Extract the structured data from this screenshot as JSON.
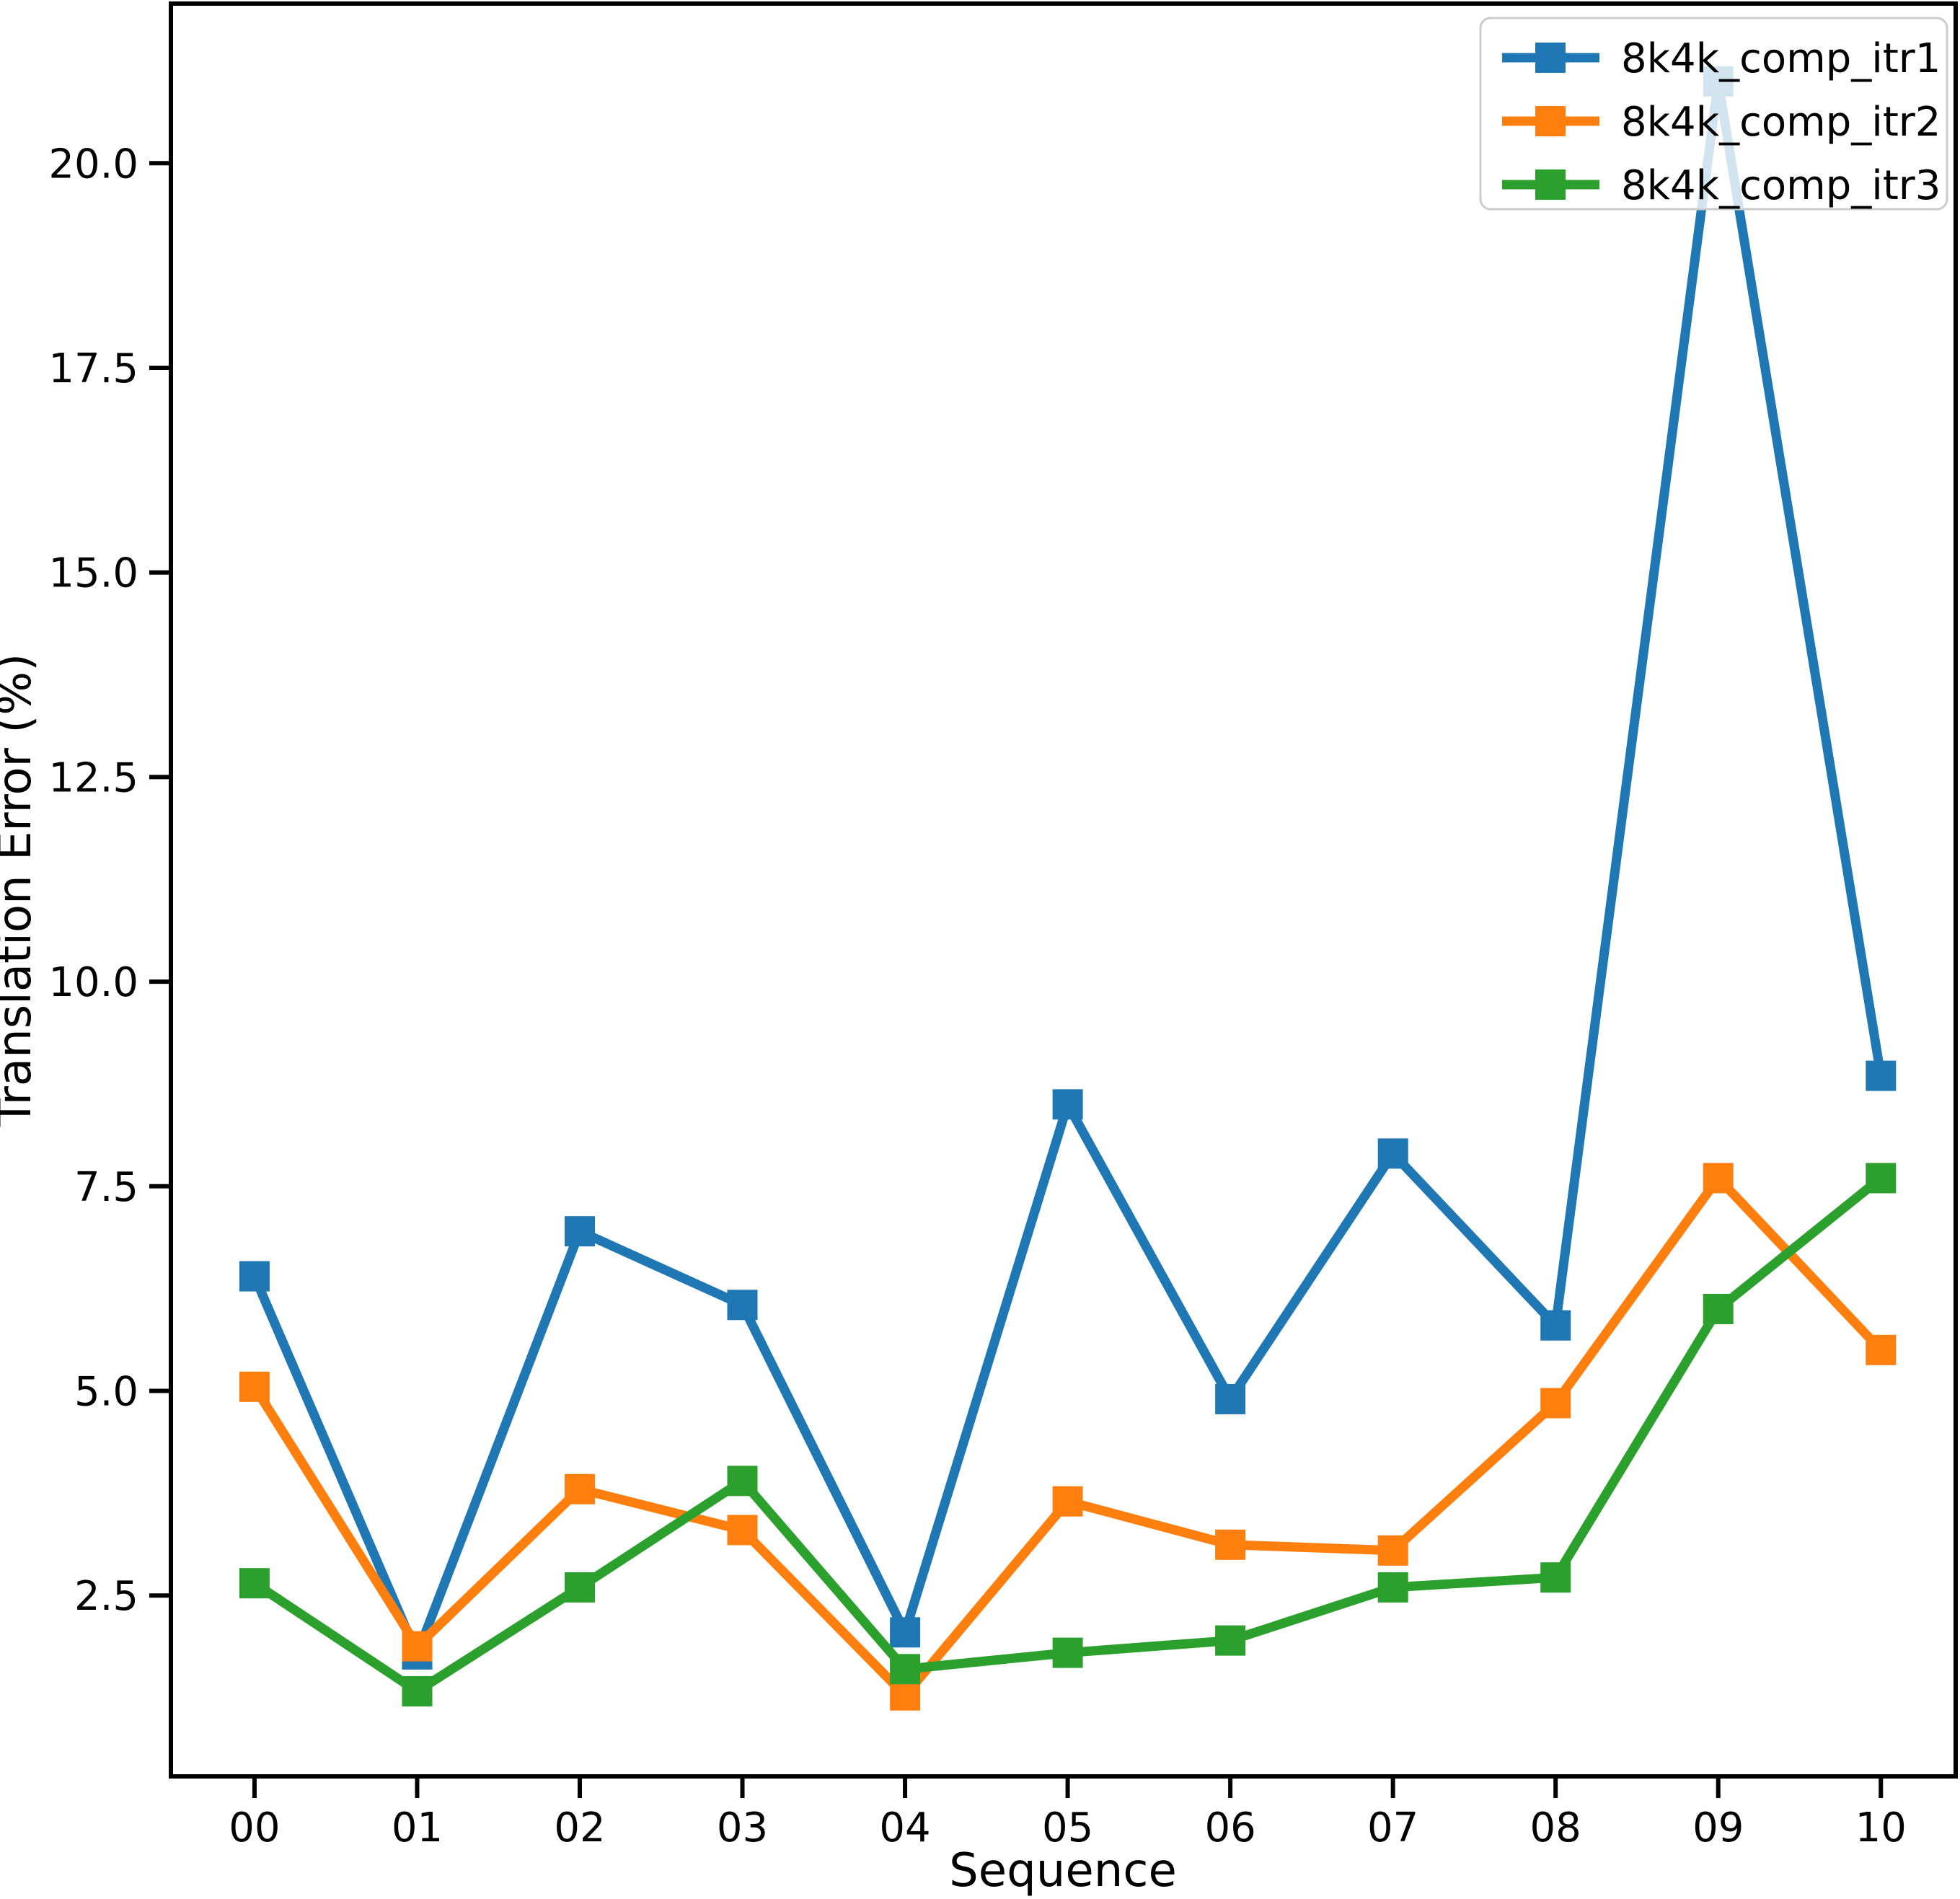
{
  "chart_data": {
    "type": "line",
    "title": "",
    "xlabel": "Sequence",
    "ylabel": "Translation Error (%)",
    "x_tick_labels": [
      "00",
      "01",
      "02",
      "03",
      "04",
      "05",
      "06",
      "07",
      "08",
      "09",
      "10"
    ],
    "y_ticks": [
      2.5,
      5.0,
      7.5,
      10.0,
      12.5,
      15.0,
      17.5,
      20.0
    ],
    "y_tick_labels": [
      "2.5",
      "5.0",
      "7.5",
      "10.0",
      "12.5",
      "15.0",
      "17.5",
      "20.0"
    ],
    "xlim": [
      -0.514,
      10.46
    ],
    "ylim": [
      0.29,
      21.95
    ],
    "grid": false,
    "legend_position": "upper right",
    "marker": "square",
    "background_color": "#ffffff",
    "axis_color": "#000000",
    "legend_border_color": "#cccccc",
    "series": [
      {
        "name": "8k4k_comp_itr1",
        "color": "#1f77b4",
        "values": [
          6.4,
          1.78,
          6.95,
          6.05,
          2.05,
          8.5,
          4.9,
          7.9,
          5.8,
          21.0,
          8.85
        ]
      },
      {
        "name": "8k4k_comp_itr2",
        "color": "#ff7f0e",
        "values": [
          5.05,
          1.88,
          3.8,
          3.3,
          1.28,
          3.65,
          3.12,
          3.05,
          4.85,
          7.6,
          5.5
        ]
      },
      {
        "name": "8k4k_comp_itr3",
        "color": "#2ca02c",
        "values": [
          2.65,
          1.33,
          2.6,
          3.9,
          1.6,
          1.8,
          1.95,
          2.6,
          2.72,
          6.0,
          7.6
        ]
      }
    ]
  }
}
